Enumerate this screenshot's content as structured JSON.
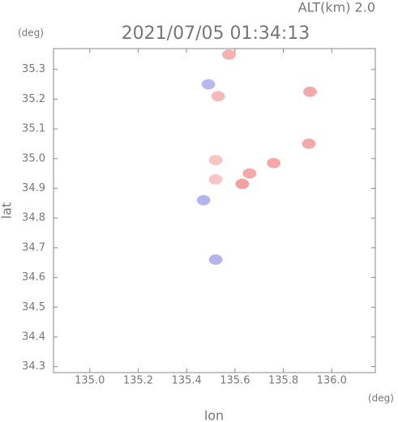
{
  "chart_data": {
    "type": "scatter",
    "title": "2021/07/05 01:34:13",
    "subtitle": "ALT(km) 2.0",
    "x_unit": "(deg)",
    "y_unit": "(deg)",
    "x_label": "lon",
    "y_label": "lat",
    "xlim": [
      134.85,
      136.18
    ],
    "ylim": [
      34.28,
      35.37
    ],
    "xticks": [
      {
        "value": 135.0,
        "label": "135.0"
      },
      135.2,
      135.4,
      135.6,
      135.8,
      {
        "value": 136.0,
        "label": "136.0"
      }
    ],
    "yticks": [
      34.3,
      34.4,
      34.5,
      34.6,
      34.7,
      34.8,
      34.9,
      {
        "value": 35.0,
        "label": "35.0"
      },
      35.1,
      35.2,
      35.3
    ],
    "x": [
      135.575,
      135.53,
      135.49,
      135.91,
      135.905,
      135.76,
      135.63,
      135.66,
      135.52,
      135.47,
      135.52,
      135.52
    ],
    "values": [
      35.35,
      35.21,
      35.25,
      35.225,
      35.05,
      34.985,
      34.915,
      34.95,
      34.93,
      34.86,
      34.995,
      34.66
    ],
    "colors": [
      "#f6b0b0",
      "#f6b8b8",
      "#b8b8f0",
      "#f4a8a8",
      "#f2a8a8",
      "#f4a8a8",
      "#f2a0a0",
      "#f4a8a8",
      "#f8c4c4",
      "#b4b4ee",
      "#f8c4c4",
      "#b4b4ee"
    ]
  }
}
